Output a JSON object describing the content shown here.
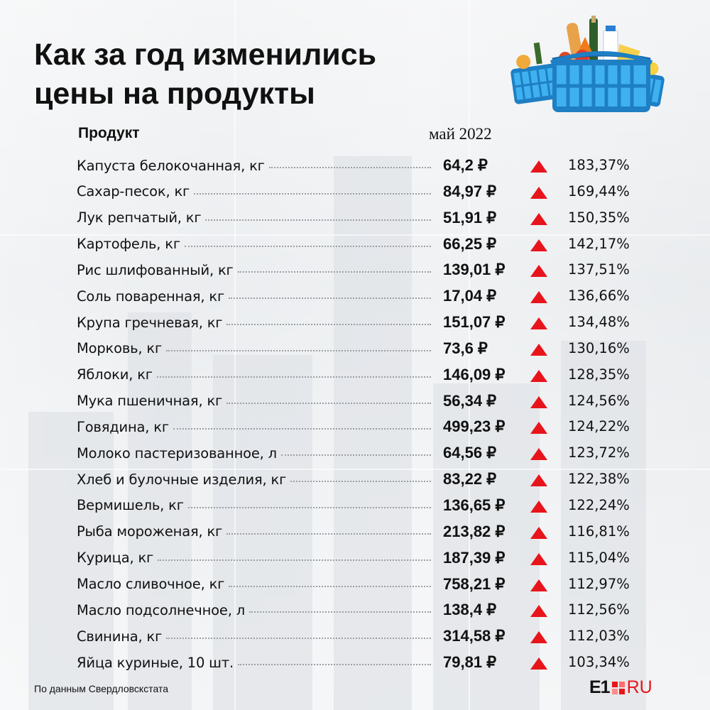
{
  "title_lines": [
    "Как за год изменились",
    "цены на продукты"
  ],
  "header": {
    "product": "Продукт",
    "month": "май 2022"
  },
  "rows": [
    {
      "name": "Капуста белокочанная, кг",
      "price": "64,2 ₽",
      "change": "183,37%"
    },
    {
      "name": "Сахар-песок, кг",
      "price": "84,97 ₽",
      "change": "169,44%"
    },
    {
      "name": "Лук репчатый, кг",
      "price": "51,91 ₽",
      "change": "150,35%"
    },
    {
      "name": "Картофель, кг",
      "price": "66,25 ₽",
      "change": "142,17%"
    },
    {
      "name": "Рис шлифованный, кг",
      "price": "139,01 ₽",
      "change": "137,51%"
    },
    {
      "name": "Соль поваренная, кг",
      "price": "17,04 ₽",
      "change": "136,66%"
    },
    {
      "name": "Крупа гречневая, кг",
      "price": "151,07 ₽",
      "change": "134,48%"
    },
    {
      "name": "Морковь, кг",
      "price": "73,6 ₽",
      "change": "130,16%"
    },
    {
      "name": "Яблоки, кг",
      "price": "146,09 ₽",
      "change": "128,35%"
    },
    {
      "name": "Мука пшеничная, кг",
      "price": "56,34 ₽",
      "change": "124,56%"
    },
    {
      "name": "Говядина, кг",
      "price": "499,23 ₽",
      "change": "124,22%"
    },
    {
      "name": "Молоко пастеризованное, л",
      "price": "64,56 ₽",
      "change": "123,72%"
    },
    {
      "name": "Хлеб и булочные изделия, кг",
      "price": "83,22 ₽",
      "change": "122,38%"
    },
    {
      "name": "Вермишель, кг",
      "price": "136,65 ₽",
      "change": "122,24%"
    },
    {
      "name": "Рыба мороженая, кг",
      "price": "213,82 ₽",
      "change": "116,81%"
    },
    {
      "name": "Курица, кг",
      "price": "187,39 ₽",
      "change": "115,04%"
    },
    {
      "name": "Масло сливочное, кг",
      "price": "758,21 ₽",
      "change": "112,97%"
    },
    {
      "name": "Масло подсолнечное, л",
      "price": "138,4 ₽",
      "change": "112,56%"
    },
    {
      "name": "Свинина, кг",
      "price": "314,58 ₽",
      "change": "112,03%"
    },
    {
      "name": "Яйца куриные, 10 шт.",
      "price": "79,81 ₽",
      "change": "103,34%"
    }
  ],
  "trend_icon": "up-triangle-icon",
  "colors": {
    "accent": "#e8141b",
    "text": "#111111"
  },
  "source": "По данным Свердловскстата",
  "logo": {
    "left": "E1",
    "right": "RU"
  }
}
